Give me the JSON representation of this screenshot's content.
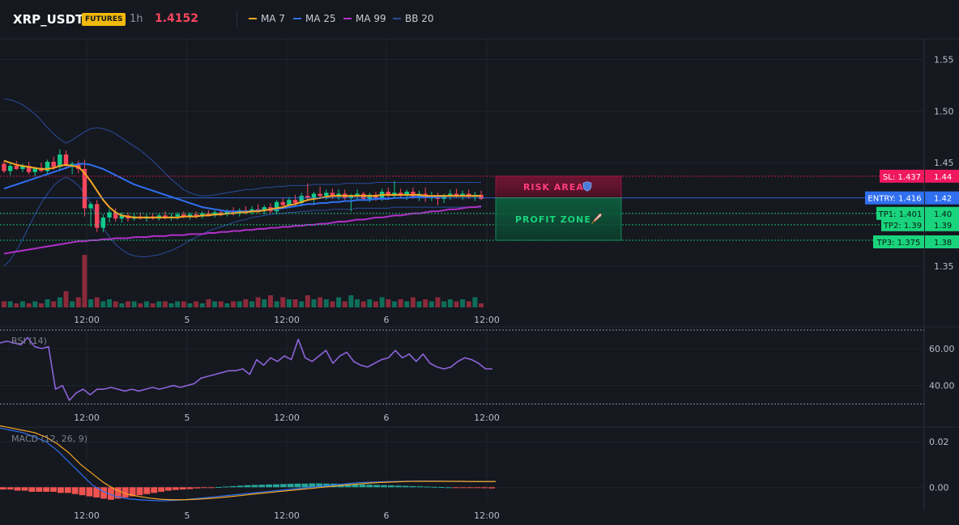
{
  "header": {
    "symbol": "XRP_USDT",
    "badge": "FUTURES",
    "timeframe": "1h",
    "price": "1.4152",
    "legend": [
      {
        "label": "MA 7",
        "color": "#f5a623"
      },
      {
        "label": "MA 25",
        "color": "#2f6ff0"
      },
      {
        "label": "MA 99",
        "color": "#b030c8"
      },
      {
        "label": "BB 20",
        "color": "#2a4d9c"
      }
    ]
  },
  "colors": {
    "up": "#12c98a",
    "down": "#f6465d",
    "sl": "#f0185e",
    "entry": "#2f6ff0",
    "tp": "#19d47c"
  },
  "zones": {
    "risk_label": "RISK AREA",
    "risk_icon": "shield-icon",
    "profit_label": "PROFIT ZONE",
    "profit_icon": "rocket-icon"
  },
  "levels": [
    {
      "label": "SL: 1.437",
      "value": 1.437,
      "axis": "1.44",
      "kind": "sl"
    },
    {
      "label": "ENTRY: 1.416",
      "value": 1.416,
      "axis": "1.42",
      "kind": "entry"
    },
    {
      "label": "TP1: 1.401",
      "value": 1.401,
      "axis": "1.40",
      "kind": "tp"
    },
    {
      "label": "TP2: 1.39",
      "value": 1.39,
      "axis": "1.39",
      "kind": "tp"
    },
    {
      "label": "TP3: 1.375",
      "value": 1.375,
      "axis": "1.38",
      "kind": "tp"
    }
  ],
  "chart_data": [
    {
      "type": "candlestick",
      "ylim": [
        1.31,
        1.57
      ],
      "yticks": [
        "1.55",
        "1.50",
        "1.45",
        "1.40",
        "1.35"
      ],
      "ytick_values": [
        1.55,
        1.5,
        1.45,
        1.4,
        1.35
      ],
      "xticks": [
        "12:00",
        "5",
        "12:00",
        "6",
        "12:00"
      ],
      "xtick_index": [
        13,
        29,
        45,
        61,
        77
      ],
      "candles": [
        [
          1.449,
          1.452,
          1.44,
          1.442
        ],
        [
          1.442,
          1.45,
          1.438,
          1.447
        ],
        [
          1.447,
          1.452,
          1.443,
          1.444
        ],
        [
          1.444,
          1.449,
          1.441,
          1.447
        ],
        [
          1.447,
          1.451,
          1.439,
          1.441
        ],
        [
          1.441,
          1.446,
          1.437,
          1.445
        ],
        [
          1.445,
          1.45,
          1.441,
          1.442
        ],
        [
          1.442,
          1.453,
          1.439,
          1.451
        ],
        [
          1.451,
          1.456,
          1.443,
          1.446
        ],
        [
          1.446,
          1.463,
          1.442,
          1.458
        ],
        [
          1.458,
          1.462,
          1.444,
          1.447
        ],
        [
          1.447,
          1.451,
          1.439,
          1.449
        ],
        [
          1.449,
          1.452,
          1.44,
          1.444
        ],
        [
          1.444,
          1.453,
          1.398,
          1.406
        ],
        [
          1.406,
          1.412,
          1.388,
          1.41
        ],
        [
          1.41,
          1.414,
          1.383,
          1.387
        ],
        [
          1.387,
          1.4,
          1.383,
          1.397
        ],
        [
          1.397,
          1.405,
          1.392,
          1.402
        ],
        [
          1.402,
          1.406,
          1.393,
          1.396
        ],
        [
          1.396,
          1.402,
          1.392,
          1.399
        ],
        [
          1.399,
          1.402,
          1.393,
          1.396
        ],
        [
          1.396,
          1.401,
          1.394,
          1.398
        ],
        [
          1.398,
          1.402,
          1.395,
          1.396
        ],
        [
          1.396,
          1.4,
          1.393,
          1.398
        ],
        [
          1.398,
          1.401,
          1.395,
          1.396
        ],
        [
          1.396,
          1.401,
          1.394,
          1.399
        ],
        [
          1.399,
          1.403,
          1.395,
          1.397
        ],
        [
          1.397,
          1.401,
          1.394,
          1.398
        ],
        [
          1.398,
          1.402,
          1.395,
          1.4
        ],
        [
          1.4,
          1.403,
          1.396,
          1.398
        ],
        [
          1.398,
          1.402,
          1.395,
          1.4
        ],
        [
          1.4,
          1.403,
          1.396,
          1.398
        ],
        [
          1.398,
          1.403,
          1.396,
          1.401
        ],
        [
          1.401,
          1.404,
          1.398,
          1.399
        ],
        [
          1.399,
          1.404,
          1.397,
          1.402
        ],
        [
          1.402,
          1.405,
          1.398,
          1.4
        ],
        [
          1.4,
          1.405,
          1.398,
          1.403
        ],
        [
          1.403,
          1.407,
          1.399,
          1.401
        ],
        [
          1.401,
          1.406,
          1.398,
          1.404
        ],
        [
          1.404,
          1.408,
          1.4,
          1.402
        ],
        [
          1.402,
          1.408,
          1.4,
          1.405
        ],
        [
          1.405,
          1.41,
          1.401,
          1.403
        ],
        [
          1.403,
          1.409,
          1.4,
          1.407
        ],
        [
          1.407,
          1.411,
          1.401,
          1.403
        ],
        [
          1.403,
          1.414,
          1.4,
          1.412
        ],
        [
          1.412,
          1.416,
          1.406,
          1.409
        ],
        [
          1.409,
          1.417,
          1.406,
          1.414
        ],
        [
          1.414,
          1.419,
          1.408,
          1.411
        ],
        [
          1.411,
          1.421,
          1.408,
          1.418
        ],
        [
          1.418,
          1.43,
          1.413,
          1.416
        ],
        [
          1.416,
          1.422,
          1.41,
          1.42
        ],
        [
          1.42,
          1.427,
          1.415,
          1.418
        ],
        [
          1.418,
          1.424,
          1.414,
          1.421
        ],
        [
          1.421,
          1.425,
          1.415,
          1.417
        ],
        [
          1.417,
          1.424,
          1.414,
          1.42
        ],
        [
          1.42,
          1.424,
          1.414,
          1.416
        ],
        [
          1.416,
          1.42,
          1.403,
          1.418
        ],
        [
          1.418,
          1.424,
          1.413,
          1.42
        ],
        [
          1.42,
          1.422,
          1.413,
          1.415
        ],
        [
          1.415,
          1.421,
          1.412,
          1.419
        ],
        [
          1.419,
          1.422,
          1.413,
          1.416
        ],
        [
          1.416,
          1.425,
          1.413,
          1.422
        ],
        [
          1.422,
          1.426,
          1.416,
          1.418
        ],
        [
          1.418,
          1.432,
          1.415,
          1.421
        ],
        [
          1.421,
          1.425,
          1.416,
          1.418
        ],
        [
          1.418,
          1.424,
          1.414,
          1.422
        ],
        [
          1.422,
          1.426,
          1.415,
          1.417
        ],
        [
          1.417,
          1.423,
          1.413,
          1.42
        ],
        [
          1.42,
          1.426,
          1.412,
          1.416
        ],
        [
          1.416,
          1.422,
          1.413,
          1.418
        ],
        [
          1.418,
          1.421,
          1.409,
          1.415
        ],
        [
          1.415,
          1.42,
          1.411,
          1.418
        ],
        [
          1.418,
          1.424,
          1.414,
          1.42
        ],
        [
          1.42,
          1.425,
          1.416,
          1.418
        ],
        [
          1.418,
          1.423,
          1.414,
          1.42
        ],
        [
          1.42,
          1.424,
          1.415,
          1.417
        ],
        [
          1.417,
          1.422,
          1.413,
          1.419
        ],
        [
          1.419,
          1.423,
          1.414,
          1.415
        ]
      ],
      "ma7": [
        1.452,
        1.45,
        1.448,
        1.447,
        1.446,
        1.445,
        1.444,
        1.444,
        1.445,
        1.447,
        1.448,
        1.447,
        1.446,
        1.44,
        1.432,
        1.423,
        1.414,
        1.407,
        1.402,
        1.399,
        1.398,
        1.397,
        1.397,
        1.397,
        1.397,
        1.397,
        1.397,
        1.397,
        1.397,
        1.398,
        1.398,
        1.398,
        1.399,
        1.399,
        1.4,
        1.4,
        1.401,
        1.401,
        1.402,
        1.402,
        1.403,
        1.403,
        1.404,
        1.405,
        1.406,
        1.407,
        1.409,
        1.41,
        1.412,
        1.414,
        1.415,
        1.416,
        1.417,
        1.418,
        1.418,
        1.418,
        1.418,
        1.418,
        1.418,
        1.418,
        1.418,
        1.419,
        1.419,
        1.419,
        1.419,
        1.419,
        1.419,
        1.419,
        1.418,
        1.418,
        1.418,
        1.418,
        1.418,
        1.418,
        1.418,
        1.418,
        1.418,
        1.418
      ],
      "ma25": [
        1.425,
        1.427,
        1.429,
        1.431,
        1.433,
        1.435,
        1.437,
        1.439,
        1.441,
        1.443,
        1.445,
        1.447,
        1.449,
        1.449,
        1.448,
        1.446,
        1.444,
        1.441,
        1.438,
        1.435,
        1.432,
        1.429,
        1.427,
        1.425,
        1.423,
        1.421,
        1.419,
        1.417,
        1.415,
        1.413,
        1.411,
        1.409,
        1.407,
        1.406,
        1.405,
        1.404,
        1.403,
        1.403,
        1.403,
        1.403,
        1.403,
        1.404,
        1.404,
        1.405,
        1.405,
        1.406,
        1.407,
        1.408,
        1.409,
        1.41,
        1.41,
        1.411,
        1.411,
        1.412,
        1.412,
        1.413,
        1.413,
        1.414,
        1.414,
        1.414,
        1.415,
        1.415,
        1.415,
        1.416,
        1.416,
        1.416,
        1.417,
        1.417,
        1.417,
        1.417,
        1.417,
        1.418,
        1.418,
        1.418,
        1.418,
        1.418,
        1.418,
        1.418
      ],
      "ma99": [
        1.362,
        1.363,
        1.364,
        1.365,
        1.366,
        1.367,
        1.368,
        1.369,
        1.37,
        1.371,
        1.372,
        1.373,
        1.374,
        1.374,
        1.375,
        1.375,
        1.376,
        1.376,
        1.377,
        1.377,
        1.377,
        1.378,
        1.378,
        1.378,
        1.379,
        1.379,
        1.379,
        1.38,
        1.38,
        1.38,
        1.381,
        1.381,
        1.381,
        1.382,
        1.382,
        1.383,
        1.383,
        1.384,
        1.384,
        1.385,
        1.385,
        1.386,
        1.386,
        1.387,
        1.387,
        1.388,
        1.388,
        1.389,
        1.389,
        1.39,
        1.39,
        1.391,
        1.391,
        1.392,
        1.393,
        1.393,
        1.394,
        1.395,
        1.395,
        1.396,
        1.397,
        1.397,
        1.398,
        1.399,
        1.399,
        1.4,
        1.401,
        1.401,
        1.402,
        1.403,
        1.403,
        1.404,
        1.405,
        1.405,
        1.406,
        1.407,
        1.407,
        1.408
      ],
      "bb_upper": [
        1.512,
        1.511,
        1.509,
        1.506,
        1.502,
        1.497,
        1.491,
        1.484,
        1.478,
        1.473,
        1.469,
        1.472,
        1.476,
        1.48,
        1.483,
        1.484,
        1.483,
        1.481,
        1.478,
        1.474,
        1.47,
        1.466,
        1.462,
        1.457,
        1.452,
        1.446,
        1.44,
        1.434,
        1.429,
        1.424,
        1.421,
        1.419,
        1.418,
        1.418,
        1.419,
        1.42,
        1.421,
        1.422,
        1.423,
        1.424,
        1.424,
        1.425,
        1.426,
        1.426,
        1.427,
        1.427,
        1.428,
        1.428,
        1.428,
        1.428,
        1.429,
        1.429,
        1.429,
        1.429,
        1.429,
        1.43,
        1.43,
        1.43,
        1.43,
        1.43,
        1.431,
        1.431,
        1.431,
        1.431,
        1.431,
        1.431,
        1.431,
        1.431,
        1.431,
        1.431,
        1.431,
        1.431,
        1.431,
        1.431,
        1.431,
        1.431,
        1.431,
        1.431
      ],
      "bb_lower": [
        1.35,
        1.356,
        1.365,
        1.376,
        1.388,
        1.4,
        1.411,
        1.42,
        1.428,
        1.433,
        1.436,
        1.433,
        1.428,
        1.42,
        1.41,
        1.398,
        1.387,
        1.378,
        1.371,
        1.366,
        1.362,
        1.36,
        1.359,
        1.359,
        1.36,
        1.361,
        1.363,
        1.365,
        1.368,
        1.371,
        1.375,
        1.378,
        1.381,
        1.384,
        1.386,
        1.388,
        1.39,
        1.392,
        1.394,
        1.395,
        1.397,
        1.398,
        1.399,
        1.4,
        1.401,
        1.401,
        1.402,
        1.402,
        1.403,
        1.403,
        1.404,
        1.404,
        1.404,
        1.405,
        1.405,
        1.405,
        1.405,
        1.406,
        1.406,
        1.406,
        1.406,
        1.406,
        1.406,
        1.407,
        1.407,
        1.407,
        1.407,
        1.407,
        1.407,
        1.407,
        1.407,
        1.407,
        1.407,
        1.407,
        1.407,
        1.407,
        1.407,
        1.407
      ],
      "volume": [
        3,
        3,
        2,
        3,
        2,
        3,
        2,
        4,
        3,
        5,
        8,
        3,
        5,
        26,
        4,
        5,
        3,
        4,
        3,
        2,
        3,
        3,
        2,
        3,
        2,
        3,
        3,
        2,
        3,
        3,
        2,
        3,
        2,
        4,
        3,
        3,
        2,
        3,
        3,
        4,
        3,
        5,
        4,
        6,
        3,
        5,
        4,
        4,
        3,
        6,
        4,
        5,
        4,
        3,
        5,
        3,
        6,
        4,
        3,
        4,
        3,
        5,
        4,
        3,
        4,
        3,
        5,
        3,
        4,
        3,
        5,
        3,
        4,
        3,
        4,
        3,
        5,
        2
      ]
    },
    {
      "type": "line",
      "name": "RSI (14)",
      "ylim": [
        28,
        70
      ],
      "yticks": [
        "60.00",
        "40.00"
      ],
      "ytick_values": [
        60,
        40
      ],
      "bands": [
        70,
        30
      ],
      "xticks": [
        "12:00",
        "5",
        "12:00",
        "6",
        "12:00"
      ],
      "values": [
        63,
        64,
        63,
        62,
        66,
        61,
        60,
        61,
        38,
        40,
        32,
        36,
        38,
        35,
        38,
        38,
        39,
        38,
        37,
        38,
        37,
        38,
        39,
        38,
        39,
        40,
        39,
        40,
        41,
        44,
        45,
        46,
        47,
        48,
        48,
        49,
        46,
        54,
        51,
        55,
        53,
        56,
        54,
        65,
        55,
        53,
        56,
        59,
        52,
        56,
        58,
        53,
        51,
        50,
        52,
        54,
        55,
        59,
        55,
        57,
        53,
        57,
        52,
        50,
        49,
        50,
        53,
        55,
        54,
        52,
        49,
        49
      ]
    },
    {
      "type": "macd",
      "name": "MACD (12, 26, 9)",
      "ylim": [
        -0.007,
        0.025
      ],
      "yticks": [
        "0.02",
        "0.00"
      ],
      "ytick_values": [
        0.02,
        0.0
      ],
      "xticks": [
        "12:00",
        "5",
        "12:00",
        "6",
        "12:00"
      ],
      "histogram": [
        -0.001,
        -0.001,
        -0.0015,
        -0.0015,
        -0.002,
        -0.002,
        -0.002,
        -0.002,
        -0.0025,
        -0.0025,
        -0.003,
        -0.0035,
        -0.004,
        -0.0045,
        -0.005,
        -0.0055,
        -0.005,
        -0.0045,
        -0.004,
        -0.0035,
        -0.003,
        -0.0025,
        -0.002,
        -0.0015,
        -0.0012,
        -0.001,
        -0.0008,
        -0.0005,
        -0.0003,
        -0.0001,
        0.0001,
        0.0003,
        0.0005,
        0.0007,
        0.0009,
        0.001,
        0.0011,
        0.0012,
        0.0013,
        0.0014,
        0.0015,
        0.0016,
        0.0016,
        0.0017,
        0.0017,
        0.0016,
        0.0016,
        0.0015,
        0.0014,
        0.0013,
        0.0012,
        0.0011,
        0.001,
        0.0009,
        0.0008,
        0.0007,
        0.0006,
        0.0005,
        0.0004,
        0.0003,
        0.0002,
        0.0001,
        0.0,
        -0.0001,
        -0.0002,
        -0.0003,
        -0.0003,
        -0.0004,
        -0.0005
      ],
      "macd": [
        0.026,
        0.025,
        0.024,
        0.022,
        0.02,
        0.016,
        0.011,
        0.006,
        0.001,
        -0.002,
        -0.004,
        -0.005,
        -0.0055,
        -0.0058,
        -0.006,
        -0.0058,
        -0.0055,
        -0.005,
        -0.0045,
        -0.004,
        -0.0035,
        -0.003,
        -0.0025,
        -0.002,
        -0.0015,
        -0.001,
        -0.0005,
        0.0,
        0.0005,
        0.001,
        0.0015,
        0.002,
        0.0022,
        0.0024,
        0.0025,
        0.0026,
        0.0027,
        0.0027,
        0.0027,
        0.0026,
        0.0026,
        0.0025,
        0.0025,
        0.0025
      ],
      "signal": [
        0.027,
        0.026,
        0.025,
        0.024,
        0.022,
        0.019,
        0.015,
        0.01,
        0.006,
        0.002,
        -0.001,
        -0.003,
        -0.004,
        -0.0048,
        -0.0053,
        -0.0055,
        -0.0055,
        -0.0053,
        -0.005,
        -0.0046,
        -0.0041,
        -0.0036,
        -0.003,
        -0.0025,
        -0.002,
        -0.0015,
        -0.001,
        -0.0005,
        0.0,
        0.0005,
        0.001,
        0.0014,
        0.0018,
        0.0021,
        0.0023,
        0.0025,
        0.0026,
        0.0026,
        0.0026,
        0.0026,
        0.0026,
        0.0025,
        0.0025,
        0.0025
      ]
    }
  ]
}
